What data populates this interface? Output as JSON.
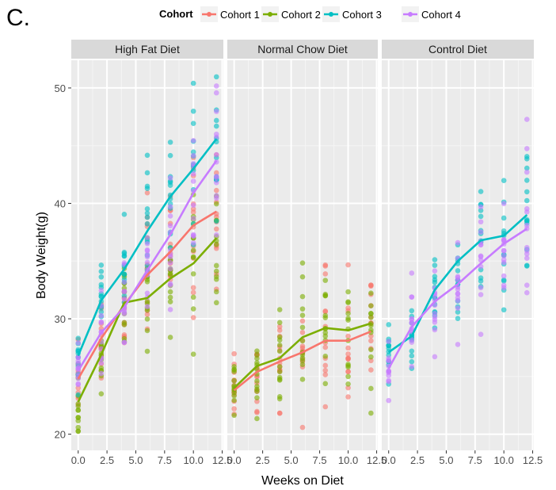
{
  "panel_label": "C.",
  "chart_data": {
    "type": "line",
    "legend": {
      "title": "Cohort",
      "placement": "top",
      "items": [
        "Cohort 1",
        "Cohort 2",
        "Cohort 3",
        "Cohort 4"
      ]
    },
    "series_colors": {
      "Cohort 1": "#F8766D",
      "Cohort 2": "#7CAE00",
      "Cohort 3": "#00BFC4",
      "Cohort 4": "#C77CFF"
    },
    "xlabel": "Weeks on Diet",
    "ylabel": "Body Weight(g)",
    "xlim": [
      -0.6,
      12.6
    ],
    "ylim": [
      18.6,
      52.4
    ],
    "xticks": [
      0,
      2.5,
      5,
      7.5,
      10,
      12.5
    ],
    "xtick_labels": [
      "0.0",
      "2.5",
      "5.0",
      "7.5",
      "10.0",
      "12.5"
    ],
    "yticks": [
      20,
      30,
      40,
      50
    ],
    "grid": true,
    "panel_background": "#ebebeb",
    "strip_background": "#d9d9d9",
    "facets": [
      {
        "name": "High Fat Diet",
        "lines": [
          {
            "name": "Cohort 1",
            "x": [
              0,
              2,
              4,
              6,
              8,
              10,
              12
            ],
            "y": [
              24.8,
              28.3,
              31.2,
              33.8,
              35.8,
              38.1,
              39.3
            ]
          },
          {
            "name": "Cohort 2",
            "x": [
              0,
              2,
              4,
              6,
              8,
              10,
              12
            ],
            "y": [
              22.8,
              26.9,
              31.4,
              31.8,
              33.5,
              34.8,
              37.0
            ]
          },
          {
            "name": "Cohort 3",
            "x": [
              0,
              2,
              4,
              6,
              8,
              10,
              12
            ],
            "y": [
              26.8,
              31.6,
              34.3,
              37.6,
              40.6,
              43.0,
              45.6
            ]
          },
          {
            "name": "Cohort 4",
            "x": [
              0,
              2,
              4,
              6,
              8,
              10,
              12
            ],
            "y": [
              25.5,
              28.8,
              31.0,
              34.2,
              37.3,
              40.9,
              43.7
            ]
          }
        ]
      },
      {
        "name": "Normal Chow Diet",
        "lines": [
          {
            "name": "Cohort 1",
            "x": [
              0,
              2,
              4,
              6,
              8,
              10,
              12
            ],
            "y": [
              23.8,
              25.4,
              26.3,
              27.1,
              28.1,
              28.1,
              28.9
            ]
          },
          {
            "name": "Cohort 2",
            "x": [
              0,
              2,
              4,
              6,
              8,
              10,
              12
            ],
            "y": [
              24.0,
              25.9,
              26.6,
              28.4,
              29.2,
              29.0,
              29.6
            ]
          }
        ]
      },
      {
        "name": "Control Diet",
        "lines": [
          {
            "name": "Cohort 3",
            "x": [
              0,
              2,
              4,
              6,
              8,
              10,
              12
            ],
            "y": [
              27.1,
              28.5,
              32.5,
              35.0,
              36.8,
              37.2,
              39.0
            ]
          },
          {
            "name": "Cohort 4",
            "x": [
              0,
              2,
              4,
              6,
              8,
              10,
              12
            ],
            "y": [
              25.7,
              29.3,
              31.5,
              33.0,
              34.8,
              36.5,
              37.8
            ]
          }
        ]
      }
    ]
  }
}
